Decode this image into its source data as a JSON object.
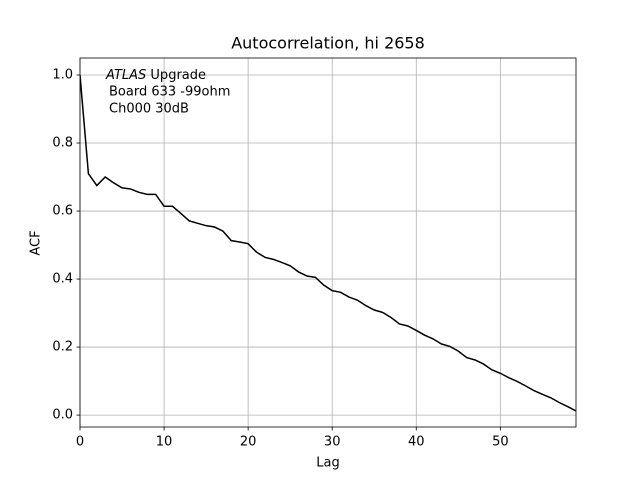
{
  "chart_data": {
    "type": "line",
    "title": "Autocorrelation, hi 2658",
    "xlabel": "Lag",
    "ylabel": "ACF",
    "annotation": [
      "ATLAS",
      "Upgrade",
      "Board 633 -99ohm",
      "Ch000 30dB"
    ],
    "x": [
      0,
      1,
      2,
      3,
      4,
      5,
      6,
      7,
      8,
      9,
      10,
      11,
      12,
      13,
      14,
      15,
      16,
      17,
      18,
      19,
      20,
      21,
      22,
      23,
      24,
      25,
      26,
      27,
      28,
      29,
      30,
      31,
      32,
      33,
      34,
      35,
      36,
      37,
      38,
      39,
      40,
      41,
      42,
      43,
      44,
      45,
      46,
      47,
      48,
      49,
      50,
      51,
      52,
      53,
      54,
      55,
      56,
      57,
      58,
      59
    ],
    "series": [
      {
        "name": "ACF",
        "color": "#000000",
        "values": [
          1.0,
          0.71,
          0.675,
          0.7,
          0.683,
          0.668,
          0.665,
          0.655,
          0.649,
          0.649,
          0.614,
          0.614,
          0.593,
          0.571,
          0.564,
          0.557,
          0.553,
          0.541,
          0.513,
          0.509,
          0.504,
          0.479,
          0.464,
          0.458,
          0.449,
          0.439,
          0.421,
          0.409,
          0.405,
          0.382,
          0.366,
          0.361,
          0.347,
          0.338,
          0.322,
          0.309,
          0.302,
          0.287,
          0.268,
          0.262,
          0.249,
          0.235,
          0.224,
          0.209,
          0.202,
          0.188,
          0.169,
          0.162,
          0.15,
          0.133,
          0.123,
          0.11,
          0.099,
          0.086,
          0.072,
          0.061,
          0.051,
          0.037,
          0.025,
          0.012
        ]
      }
    ],
    "xlim": [
      0,
      59
    ],
    "ylim": [
      -0.035,
      1.05
    ],
    "xticks": [
      0,
      10,
      20,
      30,
      40,
      50
    ],
    "yticks": [
      {
        "value": 0,
        "label": "0.0"
      },
      0.2,
      0.4,
      0.6,
      0.8,
      {
        "value": 1,
        "label": "1.0"
      }
    ],
    "grid": true
  }
}
